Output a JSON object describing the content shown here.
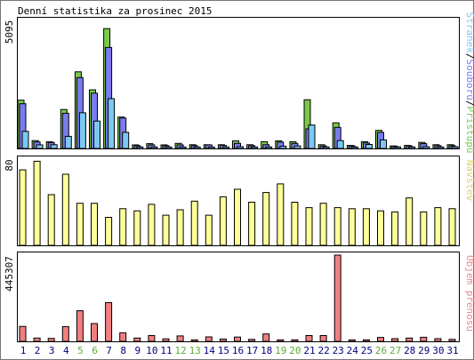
{
  "chart_data": [
    {
      "type": "bar",
      "title": "Denní statistika za prosinec 2015",
      "ylabel": "Stránek/Souborů/Přístupů",
      "ylabel_parts": [
        "Stránek",
        "/",
        "Souborů",
        "/",
        "Přístupů"
      ],
      "ymax_label": "5095",
      "ylim": [
        0,
        5095
      ],
      "categories": [
        "1",
        "2",
        "3",
        "4",
        "5",
        "6",
        "7",
        "8",
        "9",
        "10",
        "11",
        "12",
        "13",
        "14",
        "15",
        "16",
        "17",
        "18",
        "19",
        "20",
        "21",
        "22",
        "23",
        "24",
        "25",
        "26",
        "27",
        "28",
        "29",
        "30",
        "31"
      ],
      "weekend_days": [
        "5",
        "6",
        "12",
        "13",
        "19",
        "20",
        "26",
        "27"
      ],
      "series": [
        {
          "name": "Přístupů",
          "values": [
            1920,
            310,
            270,
            1550,
            3050,
            2330,
            4770,
            1250,
            140,
            190,
            140,
            200,
            150,
            150,
            150,
            300,
            150,
            270,
            300,
            270,
            1940,
            150,
            1020,
            120,
            270,
            720,
            100,
            120,
            240,
            150,
            150
          ]
        },
        {
          "name": "Souborů",
          "values": [
            1780,
            260,
            230,
            1400,
            2820,
            2200,
            4020,
            1210,
            110,
            140,
            110,
            140,
            110,
            140,
            120,
            200,
            110,
            150,
            250,
            200,
            780,
            100,
            840,
            100,
            220,
            640,
            80,
            100,
            190,
            110,
            110
          ]
        },
        {
          "name": "Stránek",
          "values": [
            680,
            140,
            150,
            480,
            1420,
            1090,
            1980,
            640,
            60,
            60,
            60,
            60,
            60,
            60,
            60,
            70,
            60,
            60,
            90,
            100,
            930,
            60,
            310,
            60,
            160,
            340,
            60,
            60,
            70,
            60,
            70
          ]
        }
      ]
    },
    {
      "type": "bar",
      "ylabel": "Návštěv",
      "ymax_label": "80",
      "ylim": [
        0,
        80
      ],
      "categories": [
        "1",
        "2",
        "3",
        "4",
        "5",
        "6",
        "7",
        "8",
        "9",
        "10",
        "11",
        "12",
        "13",
        "14",
        "15",
        "16",
        "17",
        "18",
        "19",
        "20",
        "21",
        "22",
        "23",
        "24",
        "25",
        "26",
        "27",
        "28",
        "29",
        "30",
        "31"
      ],
      "series": [
        {
          "name": "Návštěv",
          "values": [
            70,
            78,
            47,
            66,
            39,
            39,
            26,
            34,
            32,
            38,
            28,
            33,
            41,
            28,
            45,
            52,
            40,
            49,
            57,
            40,
            35,
            39,
            35,
            34,
            34,
            32,
            31,
            44,
            31,
            35,
            34
          ]
        }
      ]
    },
    {
      "type": "bar",
      "ylabel": "Objem přenosu",
      "ymax_label": "445307",
      "ylim": [
        0,
        445307
      ],
      "categories": [
        "1",
        "2",
        "3",
        "4",
        "5",
        "6",
        "7",
        "8",
        "9",
        "10",
        "11",
        "12",
        "13",
        "14",
        "15",
        "16",
        "17",
        "18",
        "19",
        "20",
        "21",
        "22",
        "23",
        "24",
        "25",
        "26",
        "27",
        "28",
        "29",
        "30",
        "31"
      ],
      "series": [
        {
          "name": "Objem přenosu",
          "values": [
            77000,
            17000,
            15000,
            76000,
            158000,
            92000,
            200000,
            44000,
            17000,
            30000,
            13000,
            28000,
            8000,
            23000,
            12000,
            22000,
            10000,
            38000,
            8000,
            8000,
            30000,
            30000,
            445307,
            8000,
            8000,
            20000,
            14000,
            17000,
            21000,
            14000,
            10000
          ]
        }
      ]
    }
  ],
  "colors": {
    "hits": "#7ac94b",
    "files": "#7b7bef",
    "pages": "#7cc8f4",
    "visits": "#ffff99",
    "kbytes": "#f08080",
    "weekend_label": "#5daa3a",
    "weekday_label": "#000080",
    "visits_label": "#d5d568",
    "kbytes_label": "#ee8888"
  }
}
